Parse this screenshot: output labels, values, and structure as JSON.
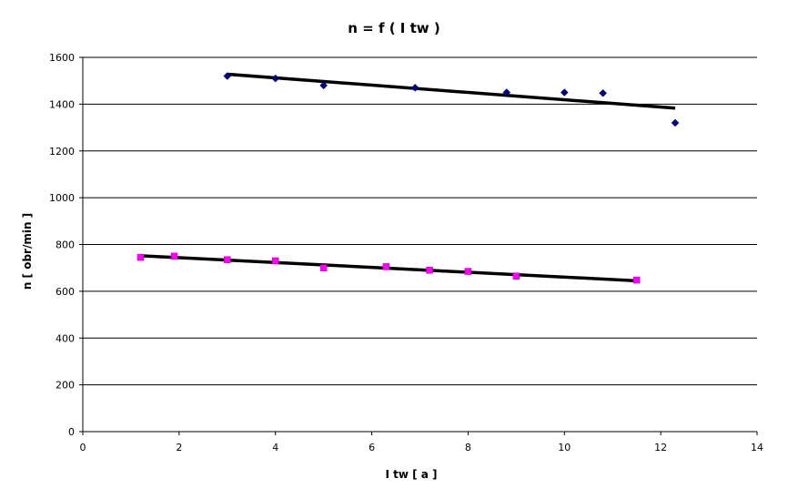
{
  "chart_data": {
    "type": "scatter",
    "title": "n = f ( I tw )",
    "xlabel": "I tw [ a ]",
    "ylabel": "n [ obr/min ]",
    "xlim": [
      0,
      14
    ],
    "ylim": [
      0,
      1600
    ],
    "xticks": [
      0,
      2,
      4,
      6,
      8,
      10,
      12,
      14
    ],
    "yticks": [
      0,
      200,
      400,
      600,
      800,
      1000,
      1200,
      1400,
      1600
    ],
    "grid": "horizontal",
    "series": [
      {
        "marker": "diamond",
        "color": "#000080",
        "x": [
          3.0,
          4.0,
          5.0,
          6.9,
          8.8,
          10.0,
          10.8,
          12.3
        ],
        "y": [
          1520,
          1510,
          1480,
          1470,
          1450,
          1450,
          1447,
          1320
        ],
        "trendline": {
          "x": [
            3.0,
            12.3
          ],
          "y": [
            1528,
            1383
          ]
        }
      },
      {
        "marker": "square",
        "color": "#ff00ff",
        "x": [
          1.2,
          1.9,
          3.0,
          4.0,
          5.0,
          6.3,
          7.2,
          8.0,
          9.0,
          11.5
        ],
        "y": [
          745,
          750,
          735,
          730,
          700,
          705,
          690,
          685,
          665,
          648
        ],
        "trendline": {
          "x": [
            1.2,
            11.5
          ],
          "y": [
            752,
            645
          ]
        }
      }
    ]
  }
}
